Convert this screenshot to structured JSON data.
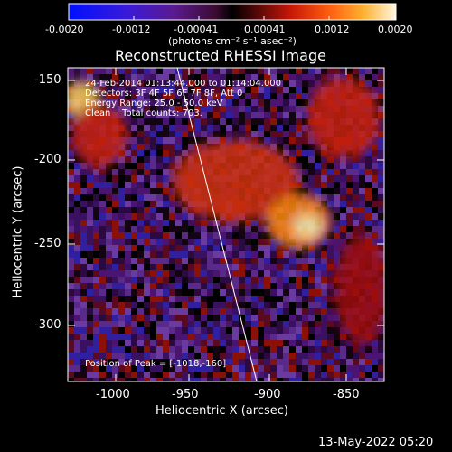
{
  "colorbar": {
    "ticks": [
      "-0.0020",
      "-0.0012",
      "-0.00041",
      "0.00041",
      "0.0012",
      "0.0020"
    ],
    "unit_label": "(photons cm⁻² s⁻¹ asec⁻²)"
  },
  "title": "Reconstructed RHESSI Image",
  "info": {
    "line1": "24-Feb-2014 01:13:44.000 to 01:14:04.000",
    "line2": "Detectors: 3F 4F 5F 6F 7F 8F, Att 0",
    "line3": "Energy Range: 25.0 - 50.0 keV",
    "line4": "Clean    Total counts: 703."
  },
  "peak_text": "Position of Peak = [-1018,-160]",
  "axes": {
    "xlabel": "Heliocentric X (arcsec)",
    "ylabel": "Heliocentric Y (arcsec)",
    "xticks": [
      "-1000",
      "-950",
      "-900",
      "-850"
    ],
    "yticks": [
      "-150",
      "-200",
      "-250",
      "-300"
    ]
  },
  "footer_date": "13-May-2022 05:20",
  "colors": {
    "background": "#000000",
    "axis": "#ffffff",
    "limb": "#ffffff"
  }
}
